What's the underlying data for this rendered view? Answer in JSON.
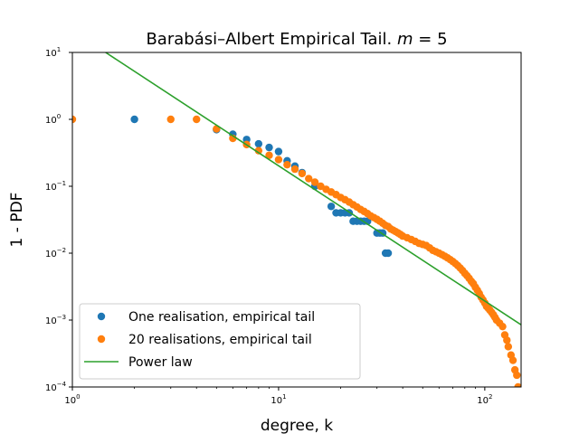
{
  "chart_data": {
    "type": "scatter",
    "title": "Barabási–Albert Empirical Tail.",
    "title_math_lhs": "m",
    "title_math_rhs": "= 5",
    "xlabel": "degree, k",
    "ylabel": "1 - PDF",
    "xscale": "log",
    "yscale": "log",
    "xlim": [
      1,
      150
    ],
    "ylim": [
      0.0001,
      10
    ],
    "x_ticks": [
      {
        "value": 1,
        "base": "10",
        "exp": "0"
      },
      {
        "value": 10,
        "base": "10",
        "exp": "1"
      },
      {
        "value": 100,
        "base": "10",
        "exp": "2"
      }
    ],
    "y_ticks": [
      {
        "value": 0.0001,
        "base": "10",
        "exp": "−4"
      },
      {
        "value": 0.001,
        "base": "10",
        "exp": "−3"
      },
      {
        "value": 0.01,
        "base": "10",
        "exp": "−2"
      },
      {
        "value": 0.1,
        "base": "10",
        "exp": "−1"
      },
      {
        "value": 1,
        "base": "10",
        "exp": "0"
      },
      {
        "value": 10,
        "base": "10",
        "exp": "1"
      }
    ],
    "grid": false,
    "legend_position": "lower-left",
    "series": [
      {
        "name": "One realisation, empirical tail",
        "kind": "scatter",
        "color": "#1f77b4",
        "points": [
          [
            2,
            1.0
          ],
          [
            5,
            0.7
          ],
          [
            6,
            0.6
          ],
          [
            7,
            0.5
          ],
          [
            8,
            0.43
          ],
          [
            9,
            0.38
          ],
          [
            10,
            0.33
          ],
          [
            11,
            0.24
          ],
          [
            12,
            0.2
          ],
          [
            13,
            0.16
          ],
          [
            15,
            0.1
          ],
          [
            18,
            0.05
          ],
          [
            19,
            0.04
          ],
          [
            20,
            0.04
          ],
          [
            21,
            0.04
          ],
          [
            22,
            0.04
          ],
          [
            23,
            0.03
          ],
          [
            24,
            0.03
          ],
          [
            25,
            0.03
          ],
          [
            26,
            0.03
          ],
          [
            27,
            0.03
          ],
          [
            30,
            0.02
          ],
          [
            31,
            0.02
          ],
          [
            32,
            0.02
          ],
          [
            33,
            0.01
          ],
          [
            34,
            0.01
          ]
        ]
      },
      {
        "name": "20 realisations, empirical tail",
        "kind": "scatter",
        "color": "#ff7f0e",
        "points": [
          [
            1,
            1.0
          ],
          [
            3,
            1.0
          ],
          [
            4,
            1.0
          ],
          [
            5,
            0.72
          ],
          [
            6,
            0.52
          ],
          [
            7,
            0.42
          ],
          [
            8,
            0.34
          ],
          [
            9,
            0.29
          ],
          [
            10,
            0.25
          ],
          [
            11,
            0.21
          ],
          [
            12,
            0.18
          ],
          [
            13,
            0.155
          ],
          [
            14,
            0.13
          ],
          [
            15,
            0.115
          ],
          [
            16,
            0.1
          ],
          [
            17,
            0.09
          ],
          [
            18,
            0.082
          ],
          [
            19,
            0.075
          ],
          [
            20,
            0.068
          ],
          [
            21,
            0.063
          ],
          [
            22,
            0.058
          ],
          [
            23,
            0.053
          ],
          [
            24,
            0.049
          ],
          [
            25,
            0.045
          ],
          [
            26,
            0.042
          ],
          [
            27,
            0.039
          ],
          [
            28,
            0.036
          ],
          [
            29,
            0.034
          ],
          [
            30,
            0.032
          ],
          [
            31,
            0.03
          ],
          [
            32,
            0.028
          ],
          [
            33,
            0.026
          ],
          [
            34,
            0.025
          ],
          [
            35,
            0.023
          ],
          [
            36,
            0.022
          ],
          [
            37,
            0.021
          ],
          [
            38,
            0.02
          ],
          [
            39,
            0.019
          ],
          [
            40,
            0.018
          ],
          [
            42,
            0.017
          ],
          [
            44,
            0.016
          ],
          [
            46,
            0.015
          ],
          [
            48,
            0.014
          ],
          [
            50,
            0.0135
          ],
          [
            52,
            0.013
          ],
          [
            54,
            0.012
          ],
          [
            56,
            0.011
          ],
          [
            58,
            0.0105
          ],
          [
            60,
            0.01
          ],
          [
            62,
            0.0095
          ],
          [
            64,
            0.009
          ],
          [
            66,
            0.0085
          ],
          [
            68,
            0.008
          ],
          [
            70,
            0.0075
          ],
          [
            72,
            0.007
          ],
          [
            74,
            0.0065
          ],
          [
            76,
            0.006
          ],
          [
            78,
            0.0055
          ],
          [
            80,
            0.005
          ],
          [
            82,
            0.0046
          ],
          [
            84,
            0.0042
          ],
          [
            86,
            0.0038
          ],
          [
            88,
            0.0035
          ],
          [
            90,
            0.0031
          ],
          [
            92,
            0.0028
          ],
          [
            94,
            0.0025
          ],
          [
            96,
            0.0022
          ],
          [
            98,
            0.002
          ],
          [
            100,
            0.0018
          ],
          [
            102,
            0.0016
          ],
          [
            104,
            0.0015
          ],
          [
            106,
            0.0014
          ],
          [
            108,
            0.0013
          ],
          [
            110,
            0.0012
          ],
          [
            112,
            0.0011
          ],
          [
            114,
            0.001
          ],
          [
            118,
            0.0009
          ],
          [
            122,
            0.0008
          ],
          [
            125,
            0.0006
          ],
          [
            128,
            0.0005
          ],
          [
            130,
            0.0004
          ],
          [
            134,
            0.0003
          ],
          [
            137,
            0.00025
          ],
          [
            140,
            0.00018
          ],
          [
            143,
            0.00015
          ],
          [
            145,
            0.0001
          ]
        ]
      },
      {
        "name": "Power law",
        "kind": "line",
        "color": "#2ca02c",
        "points": [
          [
            1.45,
            10
          ],
          [
            150,
            0.00085
          ]
        ]
      }
    ]
  }
}
